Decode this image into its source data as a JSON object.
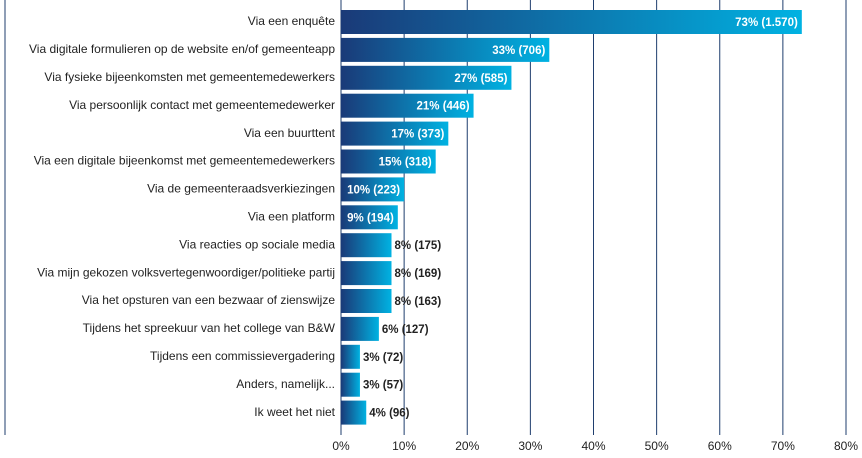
{
  "chart_data": {
    "type": "barh",
    "categories": [
      "Via een enquête",
      "Via digitale formulieren op de website en/of gemeenteapp",
      "Via fysieke bijeenkomsten met gemeentemedewerkers",
      "Via persoonlijk contact met gemeentemedewerker",
      "Via een buurttent",
      "Via een digitale bijeenkomst met gemeentemedewerkers",
      "Via de gemeenteraadsverkiezingen",
      "Via een platform",
      "Via reacties op sociale media",
      "Via mijn gekozen volksvertegenwoordiger/politieke partij",
      "Via het opsturen van een bezwaar of zienswijze",
      "Tijdens het spreekuur van het college van B&W",
      "Tijdens een commissievergadering",
      "Anders, namelijk...",
      "Ik weet het niet"
    ],
    "values": [
      73,
      33,
      27,
      21,
      17,
      15,
      10,
      9,
      8,
      8,
      8,
      6,
      3,
      3,
      4
    ],
    "value_labels": [
      "73%  (1.570)",
      "33%  (706)",
      "27%  (585)",
      "21%  (446)",
      "17%  (373)",
      "15%  (318)",
      "10%  (223)",
      "9%  (194)",
      "8%  (175)",
      "8%  (169)",
      "8%  (163)",
      "6%  (127)",
      "3%  (72)",
      "3%  (57)",
      "4%  (96)"
    ],
    "colors": [
      "#1a3a78",
      "#00b2e2"
    ],
    "xlim": [
      0,
      80
    ],
    "xticks": [
      {
        "value": 0,
        "label": "0%"
      },
      {
        "value": 10,
        "label": "10%"
      },
      {
        "value": 20,
        "label": "20%"
      },
      {
        "value": 30,
        "label": "30%"
      },
      {
        "value": 40,
        "label": "40%"
      },
      {
        "value": 50,
        "label": "50%"
      },
      {
        "value": 60,
        "label": "60%"
      },
      {
        "value": 70,
        "label": "70%"
      },
      {
        "value": 80,
        "label": "80%"
      }
    ],
    "grid": true
  }
}
